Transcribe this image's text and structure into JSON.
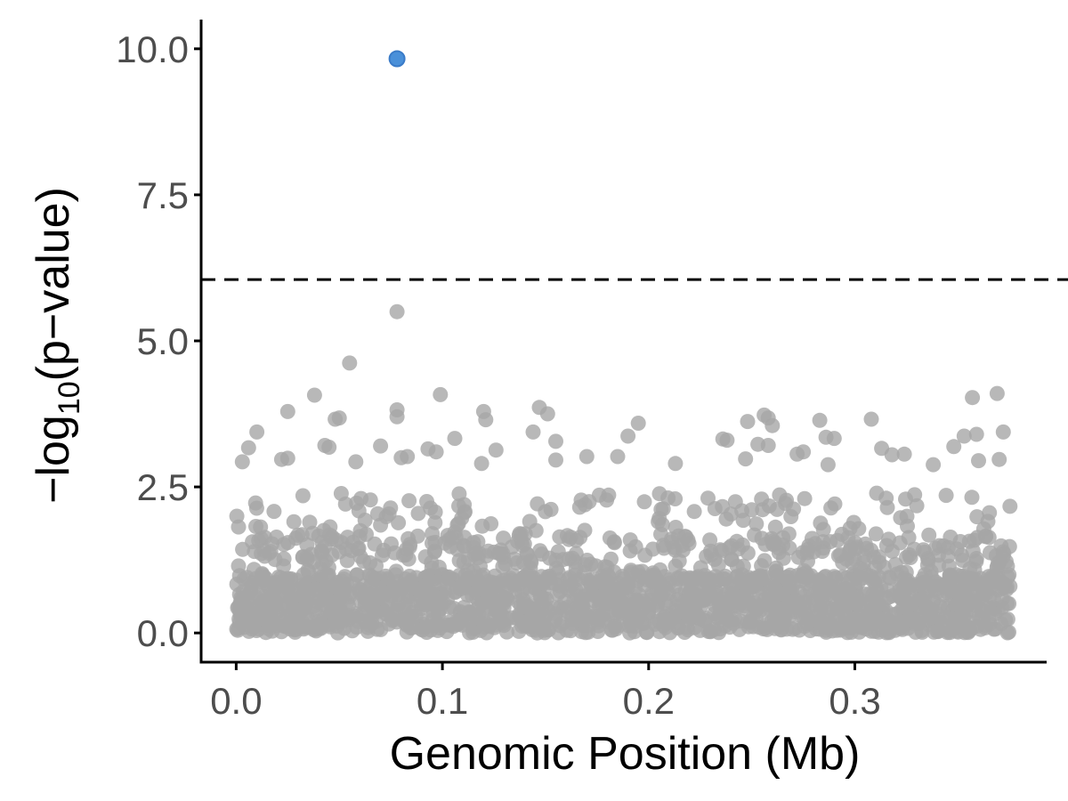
{
  "chart_data": {
    "type": "scatter",
    "title": "",
    "xlabel": "Genomic Position (Mb)",
    "ylabel": "−log10(p−value)",
    "ylabel_parts": {
      "prefix": "−log",
      "subscript": "10",
      "suffix": "(p−value)"
    },
    "xlim": [
      -0.017,
      0.393
    ],
    "ylim": [
      -0.5,
      10.5
    ],
    "x_ticks": [
      0.0,
      0.1,
      0.2,
      0.3
    ],
    "x_tick_labels": [
      "0.0",
      "0.1",
      "0.2",
      "0.3"
    ],
    "y_ticks": [
      0.0,
      2.5,
      5.0,
      7.5,
      10.0
    ],
    "y_tick_labels": [
      "0.0",
      "2.5",
      "5.0",
      "7.5",
      "10.0"
    ],
    "threshold": 6.05,
    "grid": false,
    "legend": "none",
    "colors": {
      "background_points": "#a6a6a6",
      "highlight_point": "#4a90d9",
      "highlight_edge": "#3a7bc8"
    },
    "highlight_points": [
      {
        "x": 0.078,
        "y": 9.83
      }
    ],
    "notable_points": [
      {
        "x": 0.078,
        "y": 5.5
      },
      {
        "x": 0.055,
        "y": 4.62
      },
      {
        "x": 0.038,
        "y": 4.07
      },
      {
        "x": 0.099,
        "y": 4.08
      },
      {
        "x": 0.369,
        "y": 4.1
      },
      {
        "x": 0.357,
        "y": 4.03
      },
      {
        "x": 0.147,
        "y": 3.86
      },
      {
        "x": 0.078,
        "y": 3.82
      },
      {
        "x": 0.025,
        "y": 3.79
      },
      {
        "x": 0.12,
        "y": 3.79
      },
      {
        "x": 0.151,
        "y": 3.75
      },
      {
        "x": 0.256,
        "y": 3.73
      },
      {
        "x": 0.078,
        "y": 3.7
      },
      {
        "x": 0.121,
        "y": 3.65
      },
      {
        "x": 0.048,
        "y": 3.66
      },
      {
        "x": 0.05,
        "y": 3.68
      },
      {
        "x": 0.258,
        "y": 3.68
      },
      {
        "x": 0.283,
        "y": 3.64
      },
      {
        "x": 0.308,
        "y": 3.66
      },
      {
        "x": 0.195,
        "y": 3.59
      },
      {
        "x": 0.248,
        "y": 3.62
      },
      {
        "x": 0.26,
        "y": 3.55
      },
      {
        "x": 0.144,
        "y": 3.44
      },
      {
        "x": 0.01,
        "y": 3.44
      },
      {
        "x": 0.372,
        "y": 3.44
      },
      {
        "x": 0.359,
        "y": 3.4
      },
      {
        "x": 0.353,
        "y": 3.37
      },
      {
        "x": 0.19,
        "y": 3.37
      },
      {
        "x": 0.286,
        "y": 3.35
      },
      {
        "x": 0.29,
        "y": 3.33
      },
      {
        "x": 0.106,
        "y": 3.33
      },
      {
        "x": 0.236,
        "y": 3.32
      },
      {
        "x": 0.238,
        "y": 3.3
      },
      {
        "x": 0.155,
        "y": 3.28
      },
      {
        "x": 0.253,
        "y": 3.23
      },
      {
        "x": 0.258,
        "y": 3.21
      },
      {
        "x": 0.043,
        "y": 3.21
      },
      {
        "x": 0.07,
        "y": 3.2
      },
      {
        "x": 0.045,
        "y": 3.18
      },
      {
        "x": 0.006,
        "y": 3.17
      },
      {
        "x": 0.093,
        "y": 3.15
      },
      {
        "x": 0.126,
        "y": 3.13
      },
      {
        "x": 0.313,
        "y": 3.16
      },
      {
        "x": 0.348,
        "y": 3.19
      },
      {
        "x": 0.275,
        "y": 3.1
      },
      {
        "x": 0.272,
        "y": 3.06
      },
      {
        "x": 0.324,
        "y": 3.06
      },
      {
        "x": 0.318,
        "y": 3.05
      },
      {
        "x": 0.185,
        "y": 3.02
      },
      {
        "x": 0.17,
        "y": 3.02
      },
      {
        "x": 0.097,
        "y": 3.1
      },
      {
        "x": 0.08,
        "y": 3.0
      },
      {
        "x": 0.083,
        "y": 3.02
      },
      {
        "x": 0.022,
        "y": 2.97
      },
      {
        "x": 0.025,
        "y": 2.99
      },
      {
        "x": 0.003,
        "y": 2.93
      },
      {
        "x": 0.058,
        "y": 2.93
      },
      {
        "x": 0.247,
        "y": 2.98
      },
      {
        "x": 0.37,
        "y": 2.97
      },
      {
        "x": 0.36,
        "y": 2.95
      },
      {
        "x": 0.155,
        "y": 2.96
      },
      {
        "x": 0.213,
        "y": 2.9
      },
      {
        "x": 0.287,
        "y": 2.88
      },
      {
        "x": 0.338,
        "y": 2.88
      },
      {
        "x": 0.119,
        "y": 2.9
      }
    ]
  }
}
